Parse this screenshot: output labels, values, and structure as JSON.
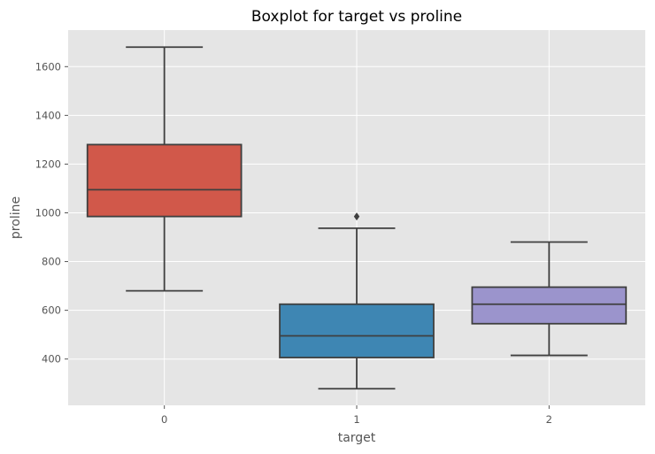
{
  "chart_data": {
    "type": "box",
    "title": "Boxplot for target vs proline",
    "xlabel": "target",
    "ylabel": "proline",
    "categories": [
      "0",
      "1",
      "2"
    ],
    "ylim": [
      210,
      1750
    ],
    "yticks": [
      400,
      600,
      800,
      1000,
      1200,
      1400,
      1600
    ],
    "grid": true,
    "boxes": [
      {
        "category": "0",
        "whisker_low": 680,
        "q1": 985,
        "median": 1095,
        "q3": 1280,
        "whisker_high": 1680,
        "outliers": [],
        "color": "#d1584a"
      },
      {
        "category": "1",
        "whisker_low": 278,
        "q1": 406,
        "median": 495,
        "q3": 625,
        "whisker_high": 937,
        "outliers": [
          985
        ],
        "color": "#3e86b3"
      },
      {
        "category": "2",
        "whisker_low": 415,
        "q1": 545,
        "median": 625,
        "q3": 695,
        "whisker_high": 880,
        "outliers": [],
        "color": "#9b94cc"
      }
    ]
  }
}
